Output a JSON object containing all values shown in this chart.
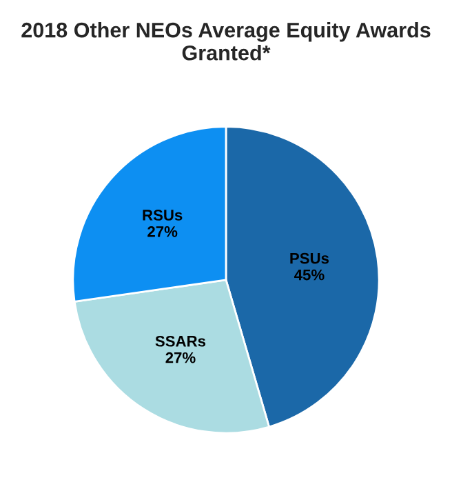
{
  "chart_data": {
    "type": "pie",
    "title": "2018 Other NEOs Average Equity Awards Granted*",
    "categories": [
      "PSUs",
      "SSARs",
      "RSUs"
    ],
    "values": [
      45,
      27,
      27
    ],
    "colors": [
      "#1b68a8",
      "#abdce2",
      "#0d8ff2"
    ],
    "value_labels": [
      "45%",
      "27%",
      "27%"
    ]
  }
}
